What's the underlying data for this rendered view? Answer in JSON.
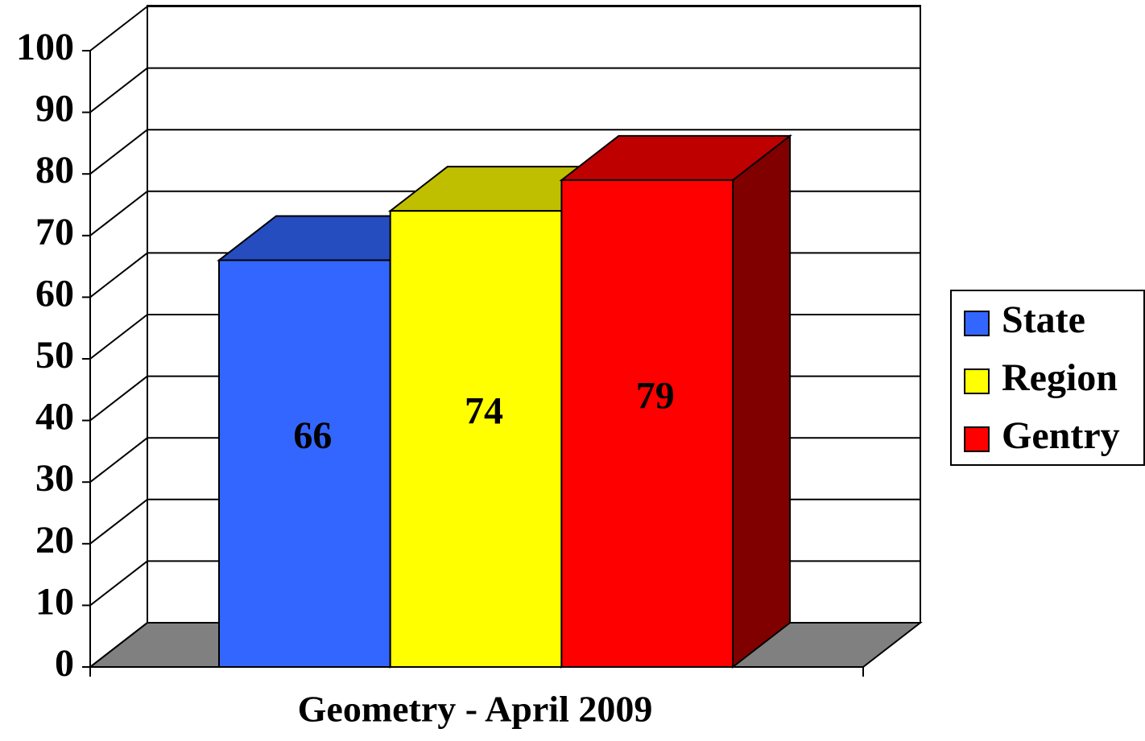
{
  "chart_data": {
    "type": "bar3d",
    "categories": [
      "Geometry - April 2009"
    ],
    "series": [
      {
        "name": "State",
        "color": "#3366ff",
        "values": [
          66
        ]
      },
      {
        "name": "Region",
        "color": "#ffff00",
        "values": [
          74
        ]
      },
      {
        "name": "Gentry",
        "color": "#ff0000",
        "values": [
          79
        ]
      }
    ],
    "ylim": [
      0,
      100
    ],
    "yticks": [
      0,
      10,
      20,
      30,
      40,
      50,
      60,
      70,
      80,
      90,
      100
    ],
    "grid": true,
    "legend": "right"
  }
}
